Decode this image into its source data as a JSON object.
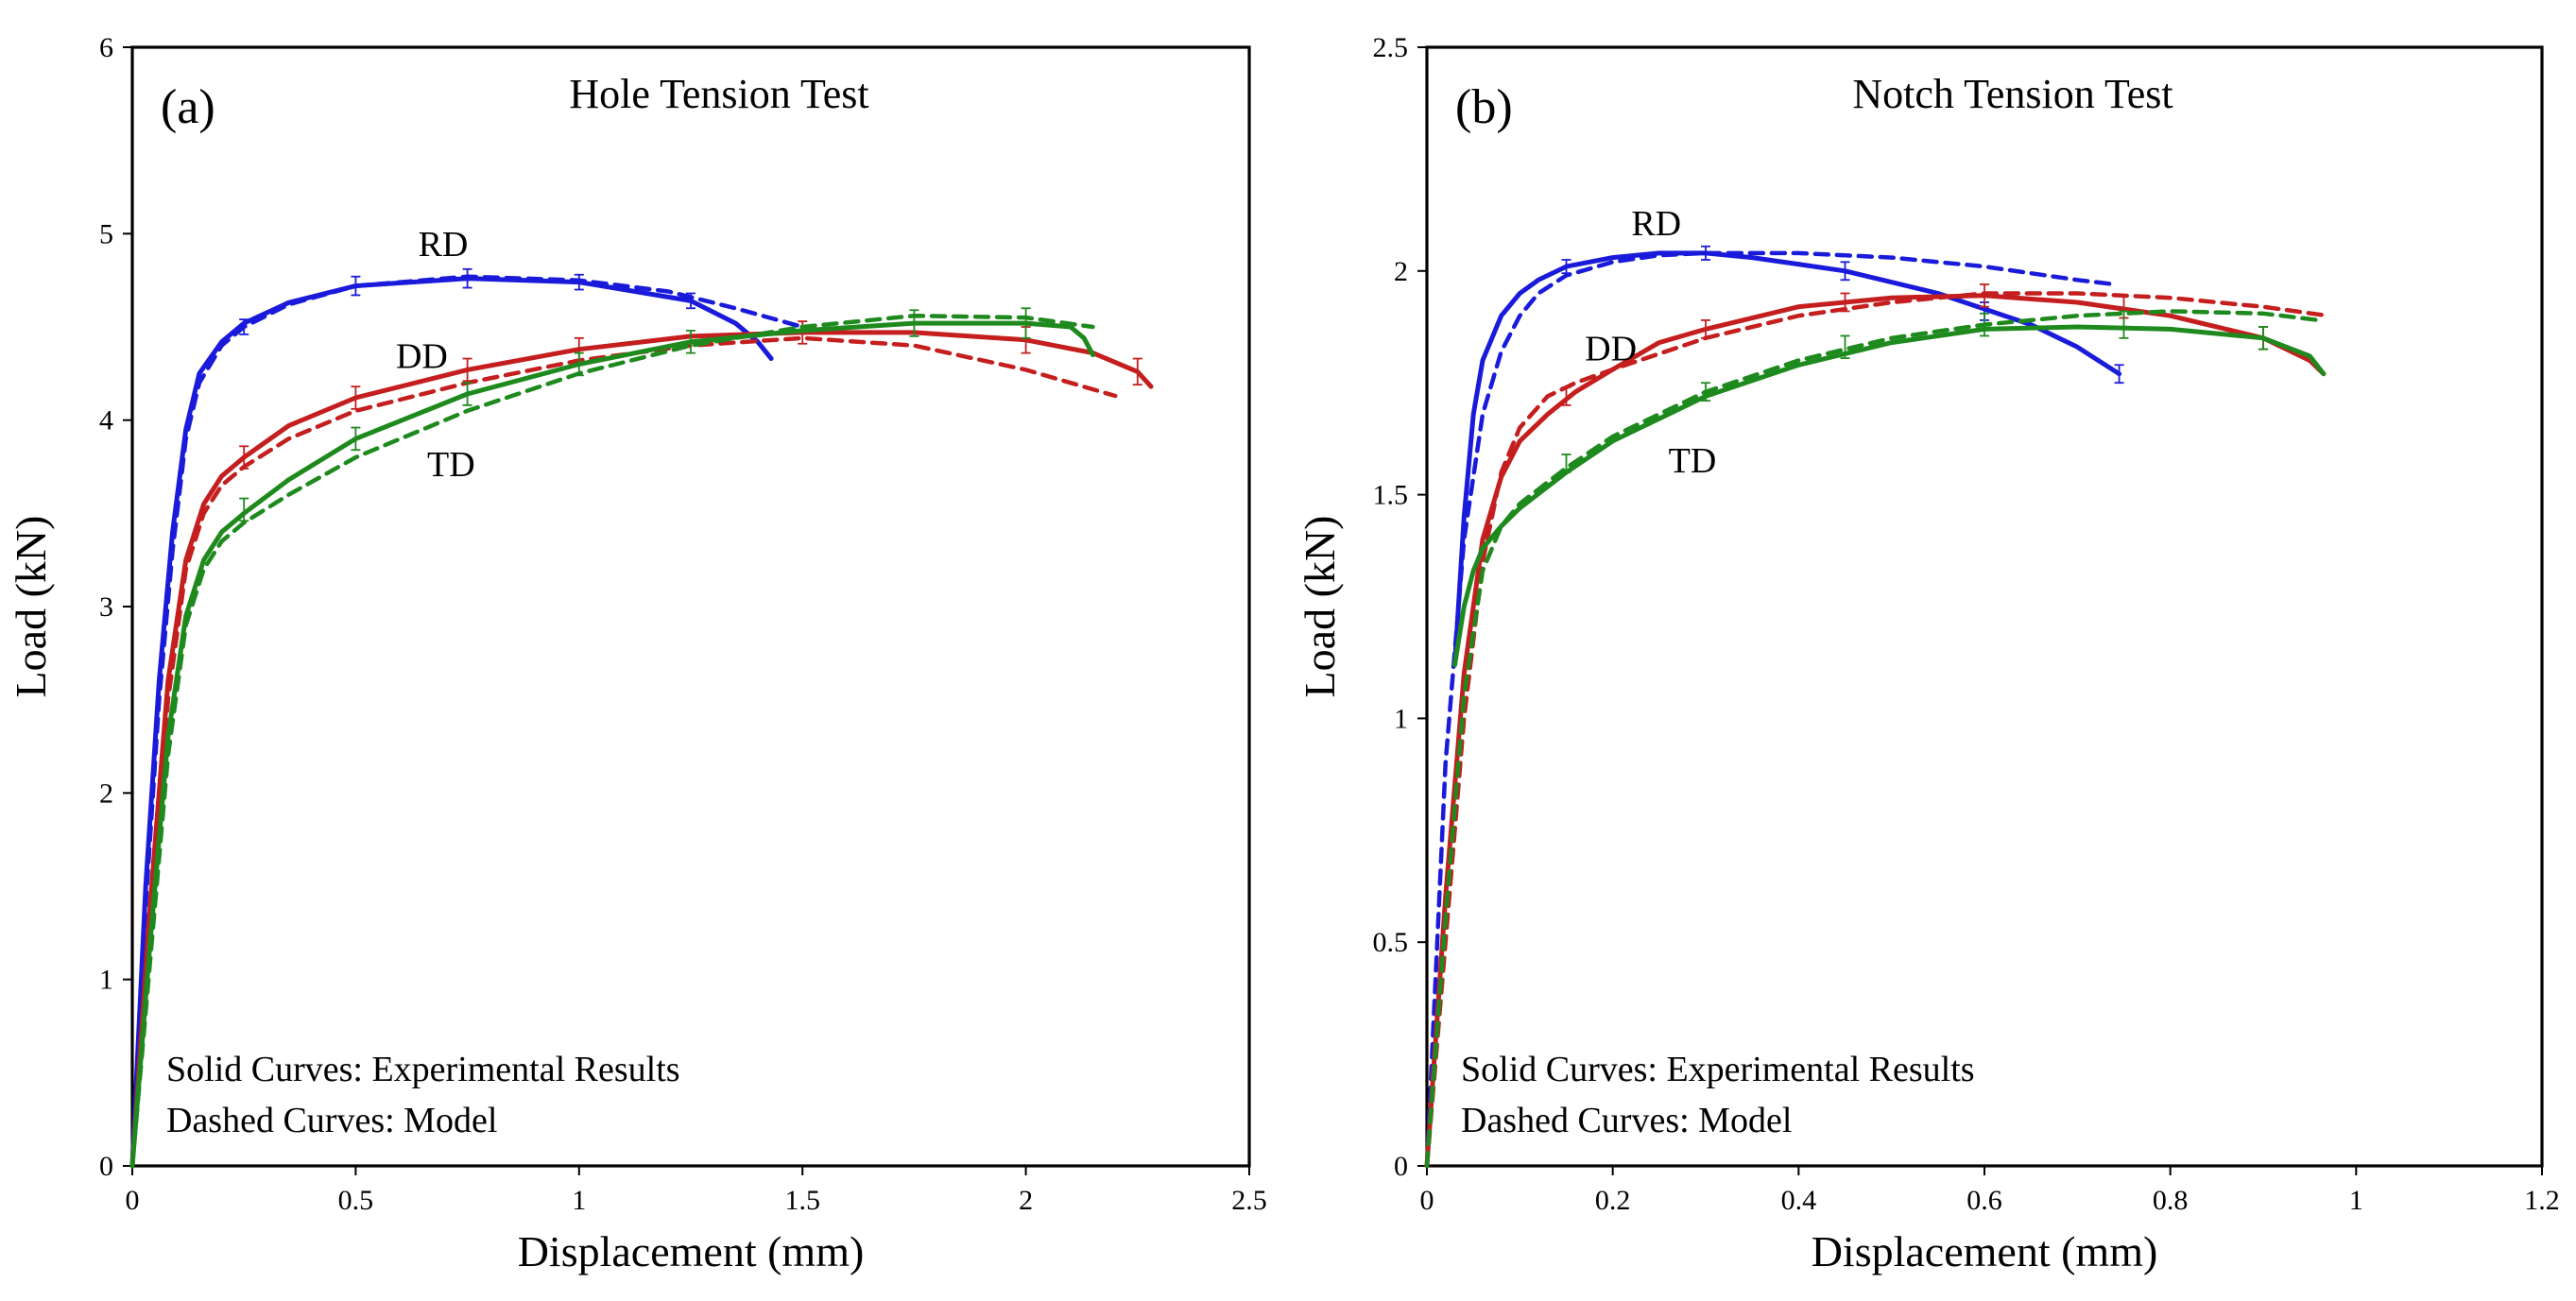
{
  "colors": {
    "RD": "#1a1adb",
    "DD": "#c41e1e",
    "TD": "#1e8a1e"
  },
  "chart_data": [
    {
      "type": "line",
      "panel": "(a)",
      "title": "Hole Tension Test",
      "xlabel": "Displacement (mm)",
      "ylabel": "Load (kN)",
      "xlim": [
        0,
        2.5
      ],
      "ylim": [
        0,
        6
      ],
      "xticks": [
        0,
        0.5,
        1,
        1.5,
        2,
        2.5
      ],
      "xtick_labels": [
        "0",
        "0.5",
        "1",
        "1.5",
        "2",
        "2.5"
      ],
      "yticks": [
        0,
        1,
        2,
        3,
        4,
        5,
        6
      ],
      "ytick_labels": [
        "0",
        "1",
        "2",
        "3",
        "4",
        "5",
        "6"
      ],
      "notes": [
        "Solid Curves: Experimental Results",
        "Dashed Curves: Model"
      ],
      "series_labels": [
        {
          "text": "RD",
          "series": "RD",
          "x": 0.64,
          "y": 4.88
        },
        {
          "text": "DD",
          "series": "DD",
          "x": 0.59,
          "y": 4.28
        },
        {
          "text": "TD",
          "series": "TD",
          "x": 0.66,
          "y": 3.7
        }
      ],
      "series": [
        {
          "name": "RD",
          "style": "solid",
          "color": "RD",
          "x": [
            0,
            0.03,
            0.06,
            0.09,
            0.12,
            0.15,
            0.2,
            0.25,
            0.35,
            0.5,
            0.75,
            1.0,
            1.25,
            1.35,
            1.4,
            1.43
          ],
          "y": [
            0,
            1.5,
            2.6,
            3.4,
            3.95,
            4.25,
            4.42,
            4.52,
            4.63,
            4.72,
            4.76,
            4.74,
            4.64,
            4.52,
            4.42,
            4.33
          ],
          "errors": [
            {
              "x": 0.25,
              "y": 4.5,
              "e": 0.04
            },
            {
              "x": 0.5,
              "y": 4.72,
              "e": 0.05
            },
            {
              "x": 0.75,
              "y": 4.76,
              "e": 0.05
            },
            {
              "x": 1.0,
              "y": 4.74,
              "e": 0.04
            },
            {
              "x": 1.25,
              "y": 4.64,
              "e": 0.04
            }
          ]
        },
        {
          "name": "RD",
          "style": "dashed",
          "color": "RD",
          "x": [
            0,
            0.03,
            0.06,
            0.09,
            0.12,
            0.15,
            0.2,
            0.25,
            0.35,
            0.5,
            0.75,
            1.0,
            1.2,
            1.35,
            1.5
          ],
          "y": [
            0,
            1.4,
            2.5,
            3.3,
            3.9,
            4.2,
            4.4,
            4.5,
            4.62,
            4.72,
            4.77,
            4.75,
            4.69,
            4.6,
            4.5
          ]
        },
        {
          "name": "DD",
          "style": "solid",
          "color": "DD",
          "x": [
            0,
            0.04,
            0.08,
            0.12,
            0.16,
            0.2,
            0.25,
            0.35,
            0.5,
            0.75,
            1.0,
            1.25,
            1.5,
            1.75,
            2.0,
            2.15,
            2.25,
            2.28
          ],
          "y": [
            0,
            1.4,
            2.6,
            3.25,
            3.55,
            3.7,
            3.8,
            3.97,
            4.12,
            4.27,
            4.38,
            4.45,
            4.47,
            4.47,
            4.43,
            4.36,
            4.26,
            4.18
          ],
          "errors": [
            {
              "x": 0.25,
              "y": 3.8,
              "e": 0.06
            },
            {
              "x": 0.5,
              "y": 4.12,
              "e": 0.06
            },
            {
              "x": 0.75,
              "y": 4.27,
              "e": 0.06
            },
            {
              "x": 1.0,
              "y": 4.38,
              "e": 0.06
            },
            {
              "x": 1.5,
              "y": 4.47,
              "e": 0.06
            },
            {
              "x": 2.0,
              "y": 4.43,
              "e": 0.07
            },
            {
              "x": 2.25,
              "y": 4.26,
              "e": 0.07
            }
          ]
        },
        {
          "name": "DD",
          "style": "dashed",
          "color": "DD",
          "x": [
            0,
            0.04,
            0.08,
            0.12,
            0.16,
            0.2,
            0.25,
            0.35,
            0.5,
            0.75,
            1.0,
            1.25,
            1.5,
            1.75,
            2.0,
            2.2
          ],
          "y": [
            0,
            1.3,
            2.5,
            3.2,
            3.5,
            3.65,
            3.75,
            3.9,
            4.05,
            4.2,
            4.32,
            4.4,
            4.44,
            4.4,
            4.27,
            4.13
          ]
        },
        {
          "name": "TD",
          "style": "solid",
          "color": "TD",
          "x": [
            0,
            0.04,
            0.08,
            0.12,
            0.16,
            0.2,
            0.25,
            0.35,
            0.5,
            0.75,
            1.0,
            1.25,
            1.5,
            1.75,
            2.0,
            2.1,
            2.13,
            2.15
          ],
          "y": [
            0,
            1.2,
            2.3,
            2.95,
            3.25,
            3.4,
            3.5,
            3.68,
            3.9,
            4.14,
            4.3,
            4.42,
            4.48,
            4.52,
            4.52,
            4.5,
            4.44,
            4.35
          ],
          "errors": [
            {
              "x": 0.25,
              "y": 3.52,
              "e": 0.06
            },
            {
              "x": 0.5,
              "y": 3.9,
              "e": 0.06
            },
            {
              "x": 0.75,
              "y": 4.14,
              "e": 0.06
            },
            {
              "x": 1.0,
              "y": 4.3,
              "e": 0.06
            },
            {
              "x": 1.25,
              "y": 4.42,
              "e": 0.06
            },
            {
              "x": 1.75,
              "y": 4.52,
              "e": 0.07
            },
            {
              "x": 2.0,
              "y": 4.52,
              "e": 0.08
            }
          ]
        },
        {
          "name": "TD",
          "style": "dashed",
          "color": "TD",
          "x": [
            0,
            0.04,
            0.08,
            0.12,
            0.16,
            0.2,
            0.25,
            0.35,
            0.5,
            0.75,
            1.0,
            1.25,
            1.5,
            1.75,
            2.0,
            2.15
          ],
          "y": [
            0,
            1.1,
            2.2,
            2.9,
            3.2,
            3.35,
            3.45,
            3.6,
            3.8,
            4.05,
            4.25,
            4.4,
            4.5,
            4.56,
            4.55,
            4.5
          ]
        }
      ]
    },
    {
      "type": "line",
      "panel": "(b)",
      "title": "Notch Tension Test",
      "xlabel": "Displacement (mm)",
      "ylabel": "Load (kN)",
      "xlim": [
        0,
        1.2
      ],
      "ylim": [
        0,
        2.5
      ],
      "xticks": [
        0,
        0.2,
        0.4,
        0.6,
        0.8,
        1,
        1.2
      ],
      "xtick_labels": [
        "0",
        "0.2",
        "0.4",
        "0.6",
        "0.8",
        "1",
        "1.2"
      ],
      "yticks": [
        0,
        0.5,
        1,
        1.5,
        2,
        2.5
      ],
      "ytick_labels": [
        "0",
        "0.5",
        "1",
        "1.5",
        "2",
        "2.5"
      ],
      "notes": [
        "Solid Curves: Experimental Results",
        "Dashed Curves: Model"
      ],
      "series_labels": [
        {
          "text": "RD",
          "series": "RD",
          "x": 0.22,
          "y": 2.08
        },
        {
          "text": "DD",
          "series": "DD",
          "x": 0.17,
          "y": 1.8
        },
        {
          "text": "TD",
          "series": "TD",
          "x": 0.26,
          "y": 1.55
        }
      ],
      "series": [
        {
          "name": "RD",
          "style": "solid",
          "color": "RD",
          "x": [
            0.03,
            0.04,
            0.05,
            0.06,
            0.08,
            0.1,
            0.12,
            0.15,
            0.2,
            0.25,
            0.3,
            0.35,
            0.45,
            0.55,
            0.65,
            0.7,
            0.745
          ],
          "y": [
            1.12,
            1.45,
            1.68,
            1.8,
            1.9,
            1.95,
            1.98,
            2.01,
            2.03,
            2.04,
            2.04,
            2.03,
            2.0,
            1.95,
            1.88,
            1.83,
            1.77
          ],
          "errors": [
            {
              "x": 0.15,
              "y": 2.01,
              "e": 0.015
            },
            {
              "x": 0.3,
              "y": 2.04,
              "e": 0.015
            },
            {
              "x": 0.45,
              "y": 2.0,
              "e": 0.02
            },
            {
              "x": 0.6,
              "y": 1.91,
              "e": 0.02
            },
            {
              "x": 0.745,
              "y": 1.77,
              "e": 0.02
            }
          ]
        },
        {
          "name": "RD",
          "style": "dashed",
          "color": "RD",
          "x": [
            0,
            0.02,
            0.04,
            0.06,
            0.08,
            0.1,
            0.12,
            0.15,
            0.2,
            0.25,
            0.3,
            0.4,
            0.5,
            0.6,
            0.7,
            0.74
          ],
          "y": [
            0,
            0.9,
            1.4,
            1.68,
            1.82,
            1.9,
            1.95,
            1.99,
            2.02,
            2.035,
            2.04,
            2.04,
            2.03,
            2.01,
            1.98,
            1.97
          ]
        },
        {
          "name": "DD",
          "style": "solid",
          "color": "DD",
          "x": [
            0,
            0.02,
            0.04,
            0.06,
            0.08,
            0.1,
            0.13,
            0.16,
            0.2,
            0.25,
            0.3,
            0.4,
            0.5,
            0.6,
            0.7,
            0.8,
            0.9,
            0.95,
            0.965
          ],
          "y": [
            0,
            0.6,
            1.1,
            1.4,
            1.54,
            1.62,
            1.68,
            1.73,
            1.78,
            1.84,
            1.87,
            1.92,
            1.94,
            1.945,
            1.93,
            1.9,
            1.85,
            1.8,
            1.77
          ],
          "errors": [
            {
              "x": 0.15,
              "y": 1.72,
              "e": 0.02
            },
            {
              "x": 0.3,
              "y": 1.87,
              "e": 0.02
            },
            {
              "x": 0.45,
              "y": 1.93,
              "e": 0.02
            },
            {
              "x": 0.6,
              "y": 1.945,
              "e": 0.025
            },
            {
              "x": 0.75,
              "y": 1.92,
              "e": 0.025
            },
            {
              "x": 0.9,
              "y": 1.85,
              "e": 0.025
            }
          ]
        },
        {
          "name": "DD",
          "style": "dashed",
          "color": "DD",
          "x": [
            0,
            0.02,
            0.04,
            0.06,
            0.08,
            0.1,
            0.13,
            0.16,
            0.2,
            0.3,
            0.4,
            0.5,
            0.6,
            0.7,
            0.8,
            0.9,
            0.97
          ],
          "y": [
            0,
            0.5,
            1.0,
            1.35,
            1.55,
            1.65,
            1.72,
            1.75,
            1.78,
            1.85,
            1.9,
            1.93,
            1.95,
            1.95,
            1.94,
            1.92,
            1.9
          ]
        },
        {
          "name": "TD",
          "style": "solid",
          "color": "TD",
          "x": [
            0.03,
            0.04,
            0.05,
            0.06,
            0.08,
            0.1,
            0.15,
            0.2,
            0.3,
            0.4,
            0.5,
            0.6,
            0.7,
            0.8,
            0.9,
            0.95,
            0.965
          ],
          "y": [
            1.12,
            1.25,
            1.33,
            1.38,
            1.43,
            1.47,
            1.55,
            1.62,
            1.72,
            1.79,
            1.84,
            1.87,
            1.875,
            1.87,
            1.85,
            1.81,
            1.77
          ],
          "errors": [
            {
              "x": 0.15,
              "y": 1.57,
              "e": 0.02
            },
            {
              "x": 0.3,
              "y": 1.73,
              "e": 0.02
            },
            {
              "x": 0.45,
              "y": 1.83,
              "e": 0.025
            },
            {
              "x": 0.6,
              "y": 1.88,
              "e": 0.025
            },
            {
              "x": 0.75,
              "y": 1.88,
              "e": 0.03
            },
            {
              "x": 0.9,
              "y": 1.85,
              "e": 0.025
            }
          ]
        },
        {
          "name": "TD",
          "style": "dashed",
          "color": "TD",
          "x": [
            0,
            0.02,
            0.04,
            0.06,
            0.08,
            0.1,
            0.15,
            0.2,
            0.3,
            0.4,
            0.5,
            0.6,
            0.7,
            0.8,
            0.9,
            0.96
          ],
          "y": [
            0,
            0.55,
            1.05,
            1.33,
            1.43,
            1.48,
            1.56,
            1.63,
            1.73,
            1.8,
            1.85,
            1.88,
            1.9,
            1.91,
            1.905,
            1.89
          ]
        }
      ]
    }
  ]
}
